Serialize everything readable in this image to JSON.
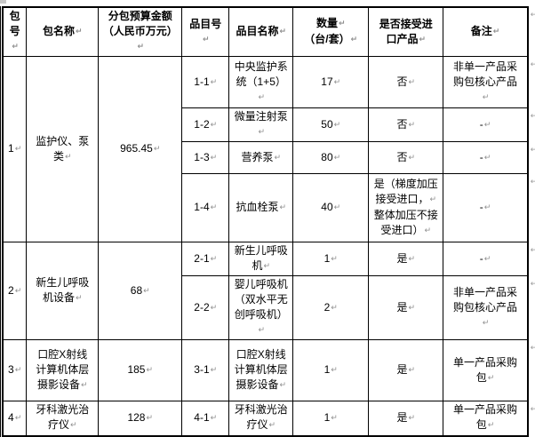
{
  "table": {
    "columns": [
      "包号",
      "包名称",
      "分包预算金额（人民币万元）",
      "品目号",
      "品目名称",
      "数量\n（台/套）",
      "是否接受进口产品",
      "备注"
    ],
    "packages": [
      {
        "package_no": "1",
        "package_name": "监护仪、泵类",
        "budget_wan_yuan": "965.45",
        "items": [
          {
            "item_no": "1-1",
            "item_name": "中央监护系统（1+5）",
            "quantity": "17",
            "accept_import": "否",
            "remark": "非单一产品采购包核心产品"
          },
          {
            "item_no": "1-2",
            "item_name": "微量注射泵",
            "quantity": "50",
            "accept_import": "否",
            "remark": "-"
          },
          {
            "item_no": "1-3",
            "item_name": "营养泵",
            "quantity": "80",
            "accept_import": "否",
            "remark": "-"
          },
          {
            "item_no": "1-4",
            "item_name": "抗血栓泵",
            "quantity": "40",
            "accept_import": "是（梯度加压接受进口，\n整体加压不接受进口）",
            "remark": "-"
          }
        ]
      },
      {
        "package_no": "2",
        "package_name": "新生儿呼吸机设备",
        "budget_wan_yuan": "68",
        "items": [
          {
            "item_no": "2-1",
            "item_name": "新生儿呼吸机",
            "quantity": "1",
            "accept_import": "是",
            "remark": "-"
          },
          {
            "item_no": "2-2",
            "item_name": "婴儿呼吸机（双水平无创呼吸机）",
            "quantity": "2",
            "accept_import": "是",
            "remark": "非单一产品采购包核心产品"
          }
        ]
      },
      {
        "package_no": "3",
        "package_name": "口腔X射线计算机体层摄影设备",
        "budget_wan_yuan": "185",
        "items": [
          {
            "item_no": "3-1",
            "item_name": "口腔X射线计算机体层摄影设备",
            "quantity": "1",
            "accept_import": "是",
            "remark": "单一产品采购包"
          }
        ]
      },
      {
        "package_no": "4",
        "package_name": "牙科激光治疗仪",
        "budget_wan_yuan": "128",
        "items": [
          {
            "item_no": "4-1",
            "item_name": "牙科激光治疗仪",
            "quantity": "1",
            "accept_import": "是",
            "remark": "单一产品采购包"
          }
        ]
      }
    ],
    "formatting_marks": {
      "line_break_mark": "↵"
    }
  }
}
